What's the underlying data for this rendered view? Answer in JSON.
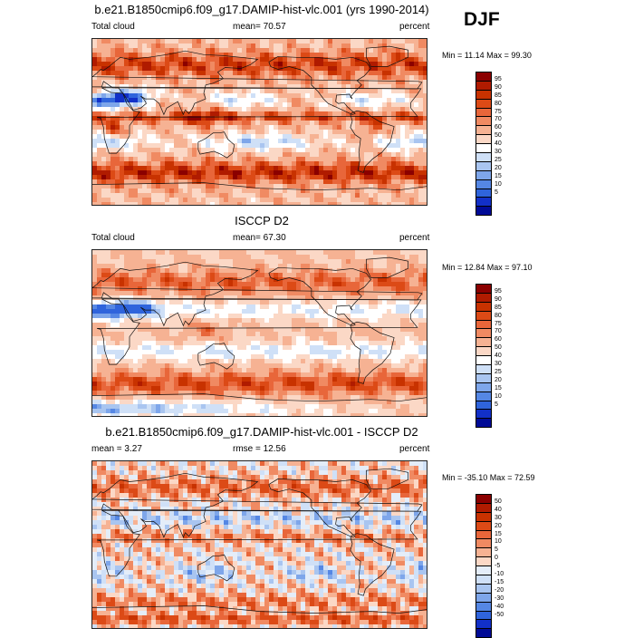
{
  "season": "DJF",
  "panels": [
    {
      "id": "model",
      "title": "b.e21.B1850cmip6.f09_g17.DAMIP-hist-vlc.001 (yrs 1990-2014)",
      "left_label": "Total cloud",
      "mid_label": "mean=  70.57",
      "right_label": "percent",
      "minmax": "Min =  11.14 Max =  99.30",
      "scale": "abs"
    },
    {
      "id": "obs",
      "title": "ISCCP D2",
      "left_label": "Total cloud",
      "mid_label": "mean=  67.30",
      "right_label": "percent",
      "minmax": "Min =  12.84 Max =  97.10",
      "scale": "abs"
    },
    {
      "id": "diff",
      "title": "b.e21.B1850cmip6.f09_g17.DAMIP-hist-vlc.001 - ISCCP D2",
      "left_label": "mean =   3.27",
      "mid_label": "rmse =  12.56",
      "right_label": "percent",
      "minmax": "Min = -35.10 Max =  72.59",
      "scale": "diff"
    }
  ],
  "colorbars": {
    "abs": {
      "labels": [
        "95",
        "90",
        "85",
        "80",
        "75",
        "70",
        "60",
        "50",
        "40",
        "30",
        "25",
        "20",
        "15",
        "10",
        "5"
      ],
      "colors": [
        "#8b0000",
        "#b01b00",
        "#c83200",
        "#dc4a16",
        "#e8663a",
        "#f08a62",
        "#f6b293",
        "#fbd8c6",
        "#ffffff",
        "#cfe0f7",
        "#a9c5f0",
        "#7ea6ea",
        "#5587e4",
        "#2f64dc",
        "#1230c8",
        "#000a96"
      ]
    },
    "diff": {
      "labels": [
        "50",
        "40",
        "30",
        "20",
        "15",
        "10",
        "5",
        "0",
        "-5",
        "-10",
        "-15",
        "-20",
        "-30",
        "-40",
        "-50"
      ],
      "colors": [
        "#8b0000",
        "#b01b00",
        "#c83200",
        "#dc4a16",
        "#e8663a",
        "#f08a62",
        "#f6b293",
        "#fbd8c6",
        "#e4edf9",
        "#cfe0f7",
        "#a9c5f0",
        "#7ea6ea",
        "#5587e4",
        "#2f64dc",
        "#1230c8",
        "#000a96"
      ]
    }
  }
}
